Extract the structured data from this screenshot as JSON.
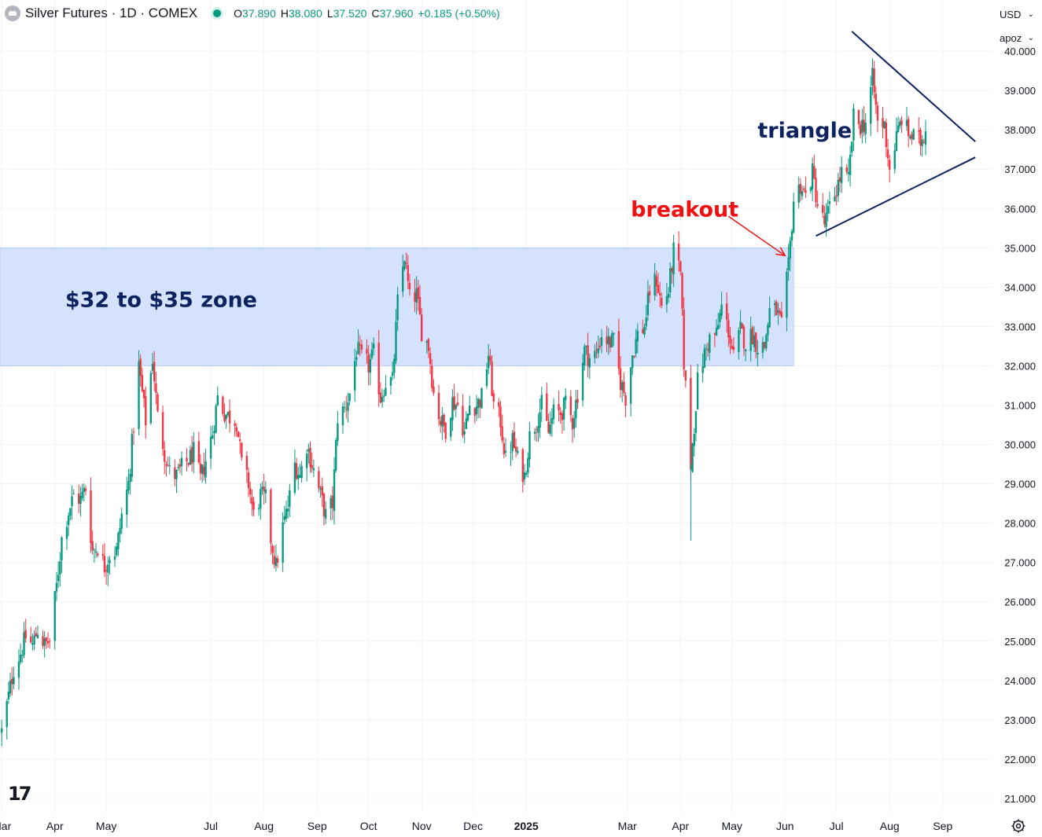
{
  "header": {
    "symbol": "Silver Futures · 1D · COMEX",
    "ohlc": {
      "o_label": "O",
      "o": "37.890",
      "h_label": "H",
      "h": "38.080",
      "l_label": "L",
      "l": "37.520",
      "c_label": "C",
      "c": "37.960",
      "change": "+0.185 (+0.50%)"
    }
  },
  "price_scale": {
    "currency": "USD",
    "unit": "apoz"
  },
  "colors": {
    "up": "#089981",
    "down": "#f23645",
    "zone": "#d5e2fd",
    "zone_border": "#8fb0f5",
    "annotation_navy": "#0d2361",
    "annotation_red": "#ee1111",
    "grid": "#f0f3fa"
  },
  "icons": {
    "settings": "gear-icon",
    "logo": "tradingview-logo",
    "symbol": "silver-symbol-icon"
  },
  "chart_data": {
    "type": "candlestick",
    "title": "Silver Futures · 1D · COMEX",
    "ylim": [
      20.6,
      41.3
    ],
    "y_ticks": [
      "21.000",
      "22.000",
      "23.000",
      "24.000",
      "25.000",
      "26.000",
      "27.000",
      "28.000",
      "29.000",
      "30.000",
      "31.000",
      "32.000",
      "33.000",
      "34.000",
      "35.000",
      "36.000",
      "37.000",
      "38.000",
      "39.000",
      "40.000"
    ],
    "x_range": [
      "2024-02-29",
      "2025-09-30"
    ],
    "x_ticks": [
      {
        "label": "Mar",
        "date": "2024-03-01"
      },
      {
        "label": "Apr",
        "date": "2024-04-01"
      },
      {
        "label": "May",
        "date": "2024-05-01"
      },
      {
        "label": "Jul",
        "date": "2024-07-01"
      },
      {
        "label": "Aug",
        "date": "2024-08-01"
      },
      {
        "label": "Sep",
        "date": "2024-09-01"
      },
      {
        "label": "Oct",
        "date": "2024-10-01"
      },
      {
        "label": "Nov",
        "date": "2024-11-01"
      },
      {
        "label": "Dec",
        "date": "2024-12-01"
      },
      {
        "label": "2025",
        "date": "2025-01-01",
        "bold": true
      },
      {
        "label": "Mar",
        "date": "2025-03-01"
      },
      {
        "label": "Apr",
        "date": "2025-04-01"
      },
      {
        "label": "May",
        "date": "2025-05-01"
      },
      {
        "label": "Jun",
        "date": "2025-06-01"
      },
      {
        "label": "Jul",
        "date": "2025-07-01"
      },
      {
        "label": "Aug",
        "date": "2025-08-01"
      },
      {
        "label": "Sep",
        "date": "2025-09-01"
      }
    ],
    "closes": [
      [
        "2024-03-01",
        22.7
      ],
      [
        "2024-03-05",
        23.6
      ],
      [
        "2024-03-08",
        24.3
      ],
      [
        "2024-03-12",
        24.7
      ],
      [
        "2024-03-15",
        25.1
      ],
      [
        "2024-03-19",
        24.9
      ],
      [
        "2024-03-22",
        25.3
      ],
      [
        "2024-03-26",
        24.9
      ],
      [
        "2024-03-29",
        25.0
      ],
      [
        "2024-04-02",
        26.4
      ],
      [
        "2024-04-05",
        27.6
      ],
      [
        "2024-04-09",
        28.3
      ],
      [
        "2024-04-12",
        28.7
      ],
      [
        "2024-04-16",
        28.6
      ],
      [
        "2024-04-19",
        28.9
      ],
      [
        "2024-04-23",
        27.3
      ],
      [
        "2024-04-26",
        27.4
      ],
      [
        "2024-04-30",
        26.9
      ],
      [
        "2024-05-03",
        27.2
      ],
      [
        "2024-05-07",
        27.3
      ],
      [
        "2024-05-10",
        28.2
      ],
      [
        "2024-05-14",
        29.0
      ],
      [
        "2024-05-17",
        30.5
      ],
      [
        "2024-05-20",
        32.0
      ],
      [
        "2024-05-24",
        30.6
      ],
      [
        "2024-05-28",
        32.2
      ],
      [
        "2024-05-31",
        30.7
      ],
      [
        "2024-06-04",
        29.8
      ],
      [
        "2024-06-07",
        29.3
      ],
      [
        "2024-06-11",
        29.2
      ],
      [
        "2024-06-14",
        29.4
      ],
      [
        "2024-06-18",
        29.6
      ],
      [
        "2024-06-21",
        29.8
      ],
      [
        "2024-06-25",
        29.1
      ],
      [
        "2024-06-28",
        29.6
      ],
      [
        "2024-07-02",
        30.3
      ],
      [
        "2024-07-05",
        31.2
      ],
      [
        "2024-07-09",
        30.8
      ],
      [
        "2024-07-12",
        30.7
      ],
      [
        "2024-07-16",
        30.6
      ],
      [
        "2024-07-19",
        29.5
      ],
      [
        "2024-07-23",
        29.0
      ],
      [
        "2024-07-26",
        28.2
      ],
      [
        "2024-07-30",
        28.7
      ],
      [
        "2024-08-02",
        28.6
      ],
      [
        "2024-08-05",
        27.6
      ],
      [
        "2024-08-08",
        26.9
      ],
      [
        "2024-08-12",
        27.9
      ],
      [
        "2024-08-15",
        28.4
      ],
      [
        "2024-08-19",
        29.5
      ],
      [
        "2024-08-22",
        29.2
      ],
      [
        "2024-08-26",
        30.0
      ],
      [
        "2024-08-29",
        29.5
      ],
      [
        "2024-09-03",
        28.7
      ],
      [
        "2024-09-06",
        28.2
      ],
      [
        "2024-09-10",
        28.5
      ],
      [
        "2024-09-13",
        30.7
      ],
      [
        "2024-09-17",
        30.9
      ],
      [
        "2024-09-20",
        31.3
      ],
      [
        "2024-09-24",
        32.4
      ],
      [
        "2024-09-27",
        32.2
      ],
      [
        "2024-10-01",
        32.0
      ],
      [
        "2024-10-04",
        32.3
      ],
      [
        "2024-10-08",
        31.2
      ],
      [
        "2024-10-11",
        31.6
      ],
      [
        "2024-10-15",
        31.6
      ],
      [
        "2024-10-18",
        33.6
      ],
      [
        "2024-10-22",
        34.8
      ],
      [
        "2024-10-25",
        33.7
      ],
      [
        "2024-10-29",
        33.8
      ],
      [
        "2024-11-01",
        32.9
      ],
      [
        "2024-11-05",
        32.5
      ],
      [
        "2024-11-08",
        31.3
      ],
      [
        "2024-11-12",
        30.6
      ],
      [
        "2024-11-15",
        30.4
      ],
      [
        "2024-11-19",
        31.1
      ],
      [
        "2024-11-22",
        31.0
      ],
      [
        "2024-11-26",
        30.3
      ],
      [
        "2024-11-29",
        31.0
      ],
      [
        "2024-12-03",
        31.0
      ],
      [
        "2024-12-06",
        31.2
      ],
      [
        "2024-12-10",
        32.3
      ],
      [
        "2024-12-13",
        31.0
      ],
      [
        "2024-12-17",
        30.6
      ],
      [
        "2024-12-20",
        29.6
      ],
      [
        "2024-12-24",
        30.1
      ],
      [
        "2024-12-27",
        29.6
      ],
      [
        "2024-12-31",
        29.2
      ],
      [
        "2025-01-03",
        30.2
      ],
      [
        "2025-01-07",
        30.6
      ],
      [
        "2025-01-10",
        31.0
      ],
      [
        "2025-01-14",
        30.3
      ],
      [
        "2025-01-17",
        30.8
      ],
      [
        "2025-01-21",
        30.8
      ],
      [
        "2025-01-24",
        31.0
      ],
      [
        "2025-01-28",
        30.6
      ],
      [
        "2025-01-31",
        31.3
      ],
      [
        "2025-02-04",
        32.4
      ],
      [
        "2025-02-07",
        32.2
      ],
      [
        "2025-02-11",
        32.3
      ],
      [
        "2025-02-14",
        32.8
      ],
      [
        "2025-02-18",
        32.6
      ],
      [
        "2025-02-21",
        32.6
      ],
      [
        "2025-02-25",
        31.6
      ],
      [
        "2025-02-28",
        31.2
      ],
      [
        "2025-03-04",
        32.3
      ],
      [
        "2025-03-07",
        32.8
      ],
      [
        "2025-03-11",
        33.0
      ],
      [
        "2025-03-14",
        33.9
      ],
      [
        "2025-03-18",
        34.2
      ],
      [
        "2025-03-21",
        33.5
      ],
      [
        "2025-03-25",
        33.9
      ],
      [
        "2025-03-28",
        34.9
      ],
      [
        "2025-04-01",
        34.3
      ],
      [
        "2025-04-03",
        32.1
      ],
      [
        "2025-04-07",
        29.5
      ],
      [
        "2025-04-09",
        30.5
      ],
      [
        "2025-04-11",
        31.6
      ],
      [
        "2025-04-15",
        32.3
      ],
      [
        "2025-04-18",
        32.7
      ],
      [
        "2025-04-22",
        32.8
      ],
      [
        "2025-04-25",
        33.5
      ],
      [
        "2025-04-29",
        32.9
      ],
      [
        "2025-05-02",
        32.2
      ],
      [
        "2025-05-06",
        32.9
      ],
      [
        "2025-05-09",
        32.6
      ],
      [
        "2025-05-13",
        32.8
      ],
      [
        "2025-05-16",
        32.5
      ],
      [
        "2025-05-20",
        32.5
      ],
      [
        "2025-05-23",
        33.4
      ],
      [
        "2025-05-27",
        33.4
      ],
      [
        "2025-05-30",
        33.0
      ],
      [
        "2025-06-03",
        34.5
      ],
      [
        "2025-06-06",
        36.2
      ],
      [
        "2025-06-10",
        36.6
      ],
      [
        "2025-06-13",
        36.3
      ],
      [
        "2025-06-17",
        36.9
      ],
      [
        "2025-06-20",
        36.1
      ],
      [
        "2025-06-24",
        35.6
      ],
      [
        "2025-06-27",
        36.0
      ],
      [
        "2025-07-01",
        36.5
      ],
      [
        "2025-07-04",
        36.9
      ],
      [
        "2025-07-08",
        36.7
      ],
      [
        "2025-07-11",
        38.3
      ],
      [
        "2025-07-15",
        38.1
      ],
      [
        "2025-07-18",
        38.2
      ],
      [
        "2025-07-22",
        39.3
      ],
      [
        "2025-07-25",
        38.2
      ],
      [
        "2025-07-29",
        38.1
      ],
      [
        "2025-08-01",
        37.0
      ],
      [
        "2025-08-05",
        37.8
      ],
      [
        "2025-08-08",
        38.3
      ],
      [
        "2025-08-12",
        37.9
      ],
      [
        "2025-08-15",
        37.8
      ],
      [
        "2025-08-19",
        37.7
      ],
      [
        "2025-08-22",
        37.96
      ]
    ],
    "zone": {
      "low": 32.0,
      "high": 35.0,
      "x_from": "2024-02-29",
      "x_to": "2025-06-06"
    },
    "annotations": [
      {
        "text": "$32 to $35 zone",
        "date": "2024-04-07",
        "price": 33.5,
        "color": "#0d2361"
      },
      {
        "text": "breakout",
        "date": "2025-03-03",
        "price": 35.8,
        "color": "#ee1111",
        "arrow_from": [
          "2025-04-29",
          35.8
        ],
        "arrow_to": [
          "2025-06-01",
          34.8
        ]
      },
      {
        "text": "triangle",
        "date": "2025-05-16",
        "price": 37.8,
        "color": "#0d2361"
      }
    ],
    "triangle": {
      "upper": [
        [
          "2025-07-10",
          40.5
        ],
        [
          "2025-09-20",
          37.7
        ]
      ],
      "lower": [
        [
          "2025-06-19",
          35.3
        ],
        [
          "2025-09-20",
          37.3
        ]
      ]
    },
    "grid": true,
    "legend": "none"
  }
}
